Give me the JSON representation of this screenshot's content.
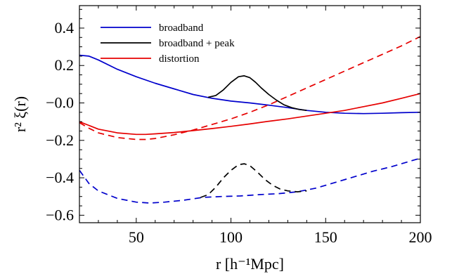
{
  "chart_data": {
    "type": "line",
    "xlabel": "r [h⁻¹Mpc]",
    "ylabel": "r² ξ(r)",
    "xlim": [
      20,
      200
    ],
    "ylim": [
      -0.64,
      0.52
    ],
    "xticks": [
      50,
      100,
      150,
      200
    ],
    "yticks": [
      0.4,
      0.2,
      0.0,
      -0.2,
      -0.4,
      -0.6
    ],
    "ytick_labels": [
      "0.4",
      "0.2",
      "−0.0",
      "−0.2",
      "−0.4",
      "−0.6"
    ],
    "legend": {
      "placement": "top-left",
      "entries": [
        {
          "label": "broadband",
          "color": "#0000cc"
        },
        {
          "label": "broadband + peak",
          "color": "#000000"
        },
        {
          "label": "distortion",
          "color": "#e60000"
        }
      ]
    },
    "series": [
      {
        "name": "broadband",
        "color": "#0000cc",
        "dash": "solid",
        "x": [
          20,
          25,
          30,
          40,
          50,
          60,
          70,
          80,
          90,
          100,
          110,
          120,
          130,
          140,
          150,
          160,
          170,
          180,
          190,
          200
        ],
        "y": [
          0.255,
          0.25,
          0.23,
          0.18,
          0.14,
          0.105,
          0.075,
          0.045,
          0.025,
          0.01,
          0.0,
          -0.012,
          -0.025,
          -0.04,
          -0.05,
          -0.055,
          -0.057,
          -0.055,
          -0.052,
          -0.05
        ]
      },
      {
        "name": "broadband + peak",
        "color": "#000000",
        "dash": "solid",
        "x": [
          88,
          92,
          96,
          100,
          104,
          107,
          110,
          113,
          116,
          120,
          124,
          128,
          132,
          136,
          140
        ],
        "y": [
          0.03,
          0.04,
          0.07,
          0.11,
          0.14,
          0.145,
          0.135,
          0.11,
          0.08,
          0.045,
          0.015,
          -0.01,
          -0.025,
          -0.035,
          -0.04
        ]
      },
      {
        "name": "distortion",
        "color": "#e60000",
        "dash": "solid",
        "x": [
          20,
          25,
          30,
          40,
          50,
          55,
          60,
          70,
          80,
          90,
          100,
          110,
          120,
          130,
          140,
          150,
          160,
          170,
          180,
          190,
          200
        ],
        "y": [
          -0.1,
          -0.12,
          -0.14,
          -0.16,
          -0.168,
          -0.168,
          -0.165,
          -0.158,
          -0.148,
          -0.137,
          -0.125,
          -0.112,
          -0.098,
          -0.085,
          -0.07,
          -0.055,
          -0.04,
          -0.02,
          0.0,
          0.025,
          0.05
        ]
      },
      {
        "color": "#e60000",
        "dash": "dashed",
        "x": [
          20,
          25,
          30,
          40,
          50,
          55,
          60,
          70,
          80,
          90,
          100,
          110,
          120,
          130,
          140,
          150,
          160,
          170,
          180,
          190,
          200
        ],
        "y": [
          -0.105,
          -0.135,
          -0.16,
          -0.185,
          -0.195,
          -0.195,
          -0.19,
          -0.17,
          -0.145,
          -0.115,
          -0.085,
          -0.05,
          -0.01,
          0.035,
          0.08,
          0.125,
          0.17,
          0.215,
          0.26,
          0.305,
          0.355
        ]
      },
      {
        "color": "#0000cc",
        "dash": "dashed",
        "x": [
          20,
          25,
          30,
          40,
          50,
          57,
          65,
          75,
          85,
          95,
          105,
          115,
          125,
          135,
          145,
          155,
          165,
          175,
          185,
          195,
          200
        ],
        "y": [
          -0.36,
          -0.43,
          -0.47,
          -0.51,
          -0.53,
          -0.535,
          -0.53,
          -0.52,
          -0.505,
          -0.5,
          -0.497,
          -0.49,
          -0.485,
          -0.475,
          -0.455,
          -0.425,
          -0.395,
          -0.365,
          -0.34,
          -0.31,
          -0.295
        ]
      },
      {
        "color": "#000000",
        "dash": "dashed",
        "x": [
          84,
          88,
          92,
          96,
          100,
          104,
          107,
          110,
          114,
          118,
          122,
          126,
          130,
          135,
          140
        ],
        "y": [
          -0.505,
          -0.49,
          -0.45,
          -0.4,
          -0.36,
          -0.33,
          -0.325,
          -0.335,
          -0.37,
          -0.41,
          -0.44,
          -0.46,
          -0.47,
          -0.475,
          -0.47
        ]
      }
    ]
  }
}
